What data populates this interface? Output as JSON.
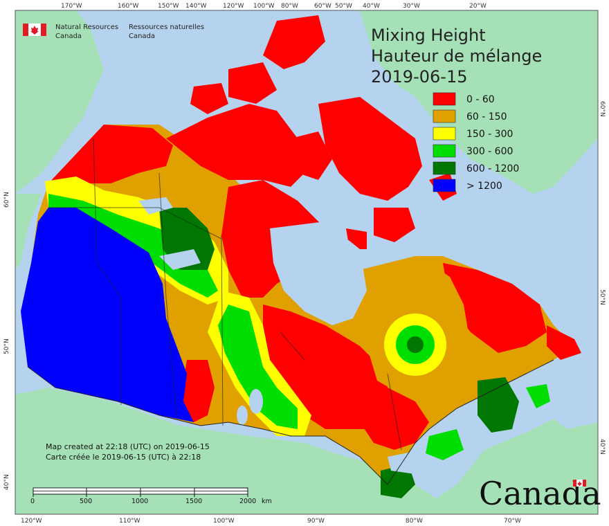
{
  "title": {
    "line1": "Mixing Height",
    "line2": "Hauteur de mélange",
    "date": "2019-06-15"
  },
  "organization": {
    "en_line1": "Natural Resources",
    "en_line2": "Canada",
    "fr_line1": "Ressources naturelles",
    "fr_line2": "Canada",
    "icon": "canada-flag-icon"
  },
  "legend": [
    {
      "label": "0 - 60",
      "color": "#ff0000"
    },
    {
      "label": "60 - 150",
      "color": "#e0a000"
    },
    {
      "label": "150 - 300",
      "color": "#ffff00"
    },
    {
      "label": "300 - 600",
      "color": "#00dd00"
    },
    {
      "label": "600 - 1200",
      "color": "#007700"
    },
    {
      "label": "> 1200",
      "color": "#0000ff"
    }
  ],
  "created_note": {
    "en": "Map created at 22:18 (UTC) on 2019-06-15",
    "fr": "Carte créée le 2019-06-15 (UTC) à 22:18"
  },
  "scale_bar": {
    "labels": [
      "0",
      "500",
      "1000",
      "1500",
      "2000"
    ],
    "unit": "km"
  },
  "top_longitudes": [
    "170°W",
    "160°W",
    "150°W",
    "140°W",
    "120°W",
    "100°W",
    "80°W",
    "60°W",
    "50°W",
    "40°W",
    "30°W",
    "20°W"
  ],
  "bottom_longitudes": [
    "120°W",
    "110°W",
    "100°W",
    "90°W",
    "80°W",
    "70°W"
  ],
  "left_latitudes": [
    "60°N",
    "50°N",
    "40°N"
  ],
  "right_latitudes": [
    "60°N",
    "50°N",
    "40°N"
  ],
  "wordmark": "Canada",
  "colors": {
    "ocean": "#b5d3ee",
    "land_other": "#a5e0b7",
    "border": "#222222"
  }
}
